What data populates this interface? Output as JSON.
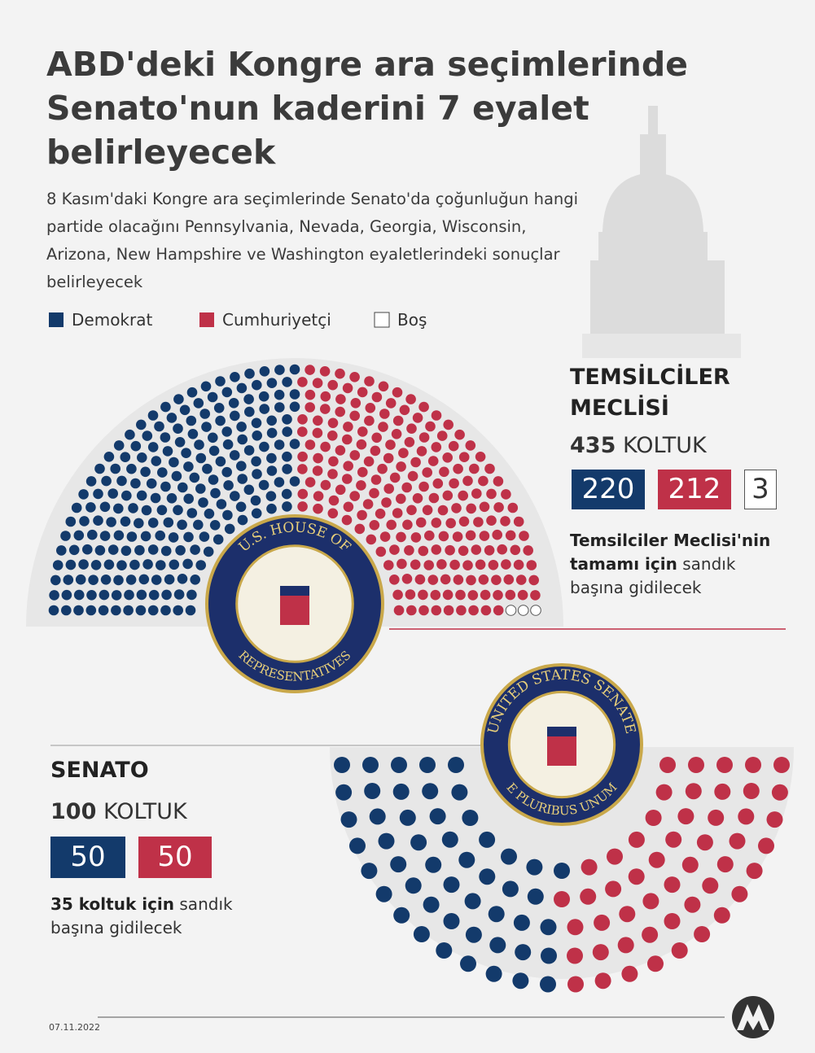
{
  "header": {
    "title": "ABD'deki Kongre ara seçimlerinde Senato'nun kaderini 7 eyalet belirleyecek",
    "subtitle": "8 Kasım'daki Kongre ara seçimlerinde Senato'da çoğunluğun hangi partide olacağını Pennsylvania, Nevada, Georgia, Wisconsin, Arizona, New Hampshire ve Washington eyaletlerindeki sonuçlar belirleyecek"
  },
  "legend": {
    "labels": [
      "Demokrat",
      "Cumhuriyetçi",
      "Boş"
    ],
    "colors": [
      "#133a6b",
      "#bf3148",
      "#ffffff"
    ]
  },
  "chart_data": [
    {
      "type": "parliament",
      "title": "TEMSİLCİLER MECLİSİ",
      "total": 435,
      "total_label": "KOLTUK",
      "values": [
        220,
        212,
        3
      ],
      "colors": [
        "#133a6b",
        "#bf3148",
        "#ffffff"
      ],
      "note_bold": "Temsilciler Meclisi'nin tamamı için",
      "note": "sandık başına gidilecek",
      "seal_top": "U.S. HOUSE OF",
      "seal_bottom": "REPRESENTATIVES"
    },
    {
      "type": "parliament",
      "title": "SENATO",
      "total": 100,
      "total_label": "KOLTUK",
      "values": [
        50,
        50
      ],
      "colors": [
        "#133a6b",
        "#bf3148"
      ],
      "note_bold": "35 koltuk için",
      "note": "sandık başına gidilecek",
      "seal_top": "UNITED STATES SENATE",
      "seal_bottom": "E PLURIBUS UNUM"
    }
  ],
  "footer": {
    "date": "07.11.2022"
  }
}
